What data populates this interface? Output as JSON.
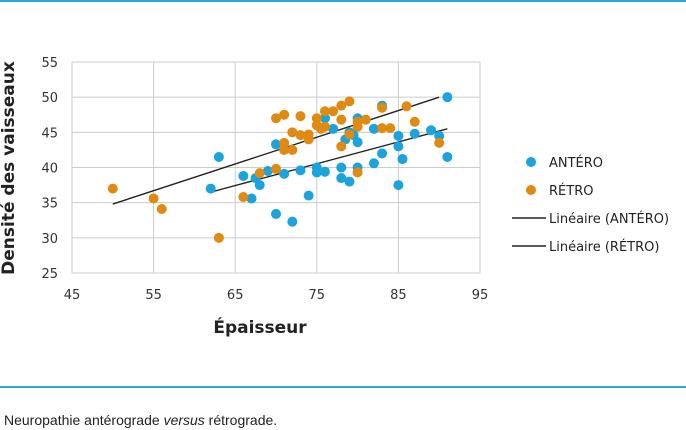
{
  "caption": {
    "before": "Neuropathie antérograde ",
    "italic": "versus",
    "after": " rétrograde."
  },
  "colors": {
    "antero": "#1aa3dc",
    "retro": "#e08a12",
    "trend": "#222222",
    "grid": "#cccccc",
    "rule": "#29a7d9"
  },
  "chart_data": {
    "type": "scatter",
    "xlabel": "Épaisseur",
    "ylabel": "Densité des vaisseaux",
    "xlim": [
      45,
      95
    ],
    "ylim": [
      25,
      55
    ],
    "xticks": [
      45,
      55,
      65,
      75,
      85,
      95
    ],
    "yticks": [
      25,
      30,
      35,
      40,
      45,
      50,
      55
    ],
    "grid": true,
    "legend_position": "right",
    "series": [
      {
        "name": "ANTÉRO",
        "kind": "points",
        "color": "#1aa3dc",
        "points": [
          [
            63,
            41.5
          ],
          [
            62,
            37
          ],
          [
            66,
            38.8
          ],
          [
            67,
            35.6
          ],
          [
            67.5,
            38.5
          ],
          [
            68,
            37.5
          ],
          [
            69,
            39.5
          ],
          [
            70,
            43.3
          ],
          [
            70,
            33.4
          ],
          [
            71,
            39.1
          ],
          [
            72,
            32.3
          ],
          [
            73,
            39.6
          ],
          [
            74,
            36
          ],
          [
            75,
            40
          ],
          [
            75,
            39.3
          ],
          [
            76,
            39.4
          ],
          [
            76,
            47
          ],
          [
            77,
            45.5
          ],
          [
            78,
            40
          ],
          [
            78,
            38.5
          ],
          [
            78.5,
            44
          ],
          [
            79,
            38
          ],
          [
            79,
            45
          ],
          [
            79.5,
            44.6
          ],
          [
            80,
            47
          ],
          [
            80,
            43.6
          ],
          [
            80,
            40
          ],
          [
            82,
            40.6
          ],
          [
            82,
            45.5
          ],
          [
            83,
            42
          ],
          [
            83,
            48.8
          ],
          [
            85,
            44.5
          ],
          [
            85,
            43
          ],
          [
            85,
            37.5
          ],
          [
            85.5,
            41.2
          ],
          [
            87,
            44.8
          ],
          [
            89,
            45.3
          ],
          [
            90,
            44.5
          ],
          [
            91,
            50
          ],
          [
            91,
            41.5
          ]
        ]
      },
      {
        "name": "RÉTRO",
        "kind": "points",
        "color": "#e08a12",
        "points": [
          [
            50,
            37
          ],
          [
            55,
            35.6
          ],
          [
            56,
            34.1
          ],
          [
            63,
            30
          ],
          [
            66,
            35.8
          ],
          [
            68,
            39.2
          ],
          [
            70,
            47
          ],
          [
            70,
            39.8
          ],
          [
            71,
            47.5
          ],
          [
            71,
            43.5
          ],
          [
            71,
            42.5
          ],
          [
            72,
            45
          ],
          [
            72,
            42.5
          ],
          [
            73,
            47.3
          ],
          [
            73,
            44.6
          ],
          [
            74,
            44.7
          ],
          [
            74,
            44
          ],
          [
            75,
            47
          ],
          [
            75,
            46
          ],
          [
            75.5,
            45.5
          ],
          [
            76,
            48
          ],
          [
            76,
            45.8
          ],
          [
            77,
            48
          ],
          [
            78,
            48.8
          ],
          [
            78,
            46.8
          ],
          [
            78,
            43
          ],
          [
            79,
            49.4
          ],
          [
            79,
            44.7
          ],
          [
            80,
            45.8
          ],
          [
            80,
            46.5
          ],
          [
            80,
            39.3
          ],
          [
            81,
            46.8
          ],
          [
            83,
            48.5
          ],
          [
            83,
            45.6
          ],
          [
            84,
            45.6
          ],
          [
            86,
            48.7
          ],
          [
            87,
            46.5
          ],
          [
            90,
            43.5
          ]
        ]
      },
      {
        "name": "Linéaire (ANTÉRO)",
        "kind": "trendline",
        "color": "#222222",
        "points": [
          [
            62,
            36.5
          ],
          [
            91,
            45.5
          ]
        ]
      },
      {
        "name": "Linéaire (RÉTRO)",
        "kind": "trendline",
        "color": "#222222",
        "points": [
          [
            50,
            34.8
          ],
          [
            90,
            50
          ]
        ]
      }
    ]
  }
}
